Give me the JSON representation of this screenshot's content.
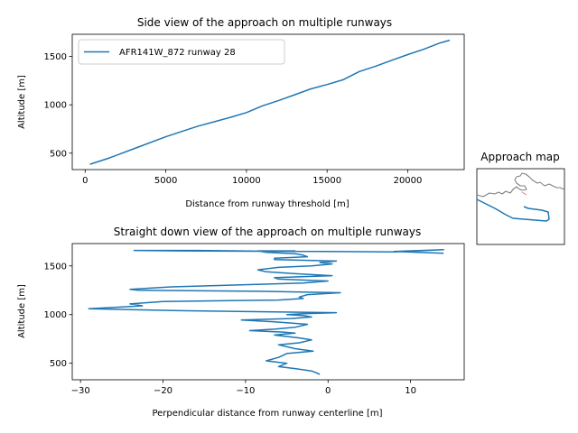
{
  "chart_data": [
    {
      "type": "line",
      "title": "Side view of the approach on multiple runways",
      "xlabel": "Distance from runway threshold [m]",
      "ylabel": "Altitude [m]",
      "xlim": [
        -800,
        23500
      ],
      "ylim": [
        330,
        1730
      ],
      "xticks": [
        0,
        5000,
        10000,
        15000,
        20000
      ],
      "yticks": [
        500,
        1000,
        1500
      ],
      "grid": false,
      "legend": "top-left",
      "color": "#1f77b4",
      "series": [
        {
          "name": "AFR141W_872 runway 28",
          "x": [
            300,
            1500,
            3000,
            5000,
            7000,
            8000,
            9000,
            10000,
            11000,
            12000,
            13000,
            14000,
            15000,
            16000,
            17000,
            18000,
            19000,
            20000,
            21000,
            22000,
            22600
          ],
          "y": [
            385,
            450,
            545,
            670,
            780,
            825,
            870,
            920,
            990,
            1045,
            1105,
            1165,
            1210,
            1260,
            1345,
            1400,
            1460,
            1520,
            1575,
            1640,
            1668
          ]
        }
      ]
    },
    {
      "type": "line",
      "title": "Straight down view of the approach on multiple runways",
      "xlabel": "Perpendicular distance from runway centerline [m]",
      "ylabel": "Altitude [m]",
      "xlim": [
        -31,
        16.5
      ],
      "ylim": [
        330,
        1730
      ],
      "xticks": [
        -30,
        -20,
        -10,
        0,
        10
      ],
      "yticks": [
        500,
        1000,
        1500
      ],
      "grid": false,
      "color": "#1f77b4",
      "series": [
        {
          "x": [
            -1,
            -1.5,
            -2,
            -4,
            -6,
            -5,
            -7.5,
            -6,
            -5,
            -1.8,
            -4,
            -6,
            -3.5,
            -2,
            -3.5,
            -6.5,
            -4,
            -5.5,
            -9.5,
            -6.5,
            -4,
            -2.5,
            -6.5,
            -10.5,
            -4.5,
            -2,
            -3,
            -5,
            -3,
            1,
            -18,
            -29,
            -22.5,
            -24,
            -20,
            -6,
            -3,
            -3.5,
            -2.5,
            1.5,
            -8.5,
            -23,
            -24,
            -19,
            -10.5,
            -3,
            0,
            -6,
            -6.5,
            0.5,
            -4,
            -7.5,
            -8.5,
            -6,
            -2,
            0.5,
            -1,
            1,
            -6.5,
            -6.5,
            -2.5,
            -3,
            -4,
            -7.5,
            -8.5,
            -4,
            -5,
            -18,
            -23.5,
            -16,
            -6.5,
            -0.5,
            8,
            14,
            8,
            14
          ],
          "y": [
            385,
            405,
            420,
            445,
            465,
            500,
            525,
            560,
            600,
            625,
            650,
            690,
            710,
            740,
            760,
            790,
            810,
            820,
            835,
            850,
            870,
            900,
            925,
            945,
            960,
            975,
            990,
            1000,
            1010,
            1020,
            1040,
            1060,
            1090,
            1110,
            1135,
            1150,
            1165,
            1180,
            1205,
            1225,
            1240,
            1250,
            1260,
            1285,
            1305,
            1325,
            1345,
            1365,
            1380,
            1400,
            1420,
            1440,
            1460,
            1485,
            1500,
            1520,
            1535,
            1550,
            1565,
            1580,
            1595,
            1610,
            1625,
            1640,
            1655,
            1655,
            1650,
            1655,
            1660,
            1660,
            1650,
            1648,
            1645,
            1668,
            1648,
            1630
          ]
        }
      ]
    },
    {
      "type": "line",
      "title": "Approach map",
      "color": "#808080",
      "accent": "#1f77b4"
    }
  ]
}
